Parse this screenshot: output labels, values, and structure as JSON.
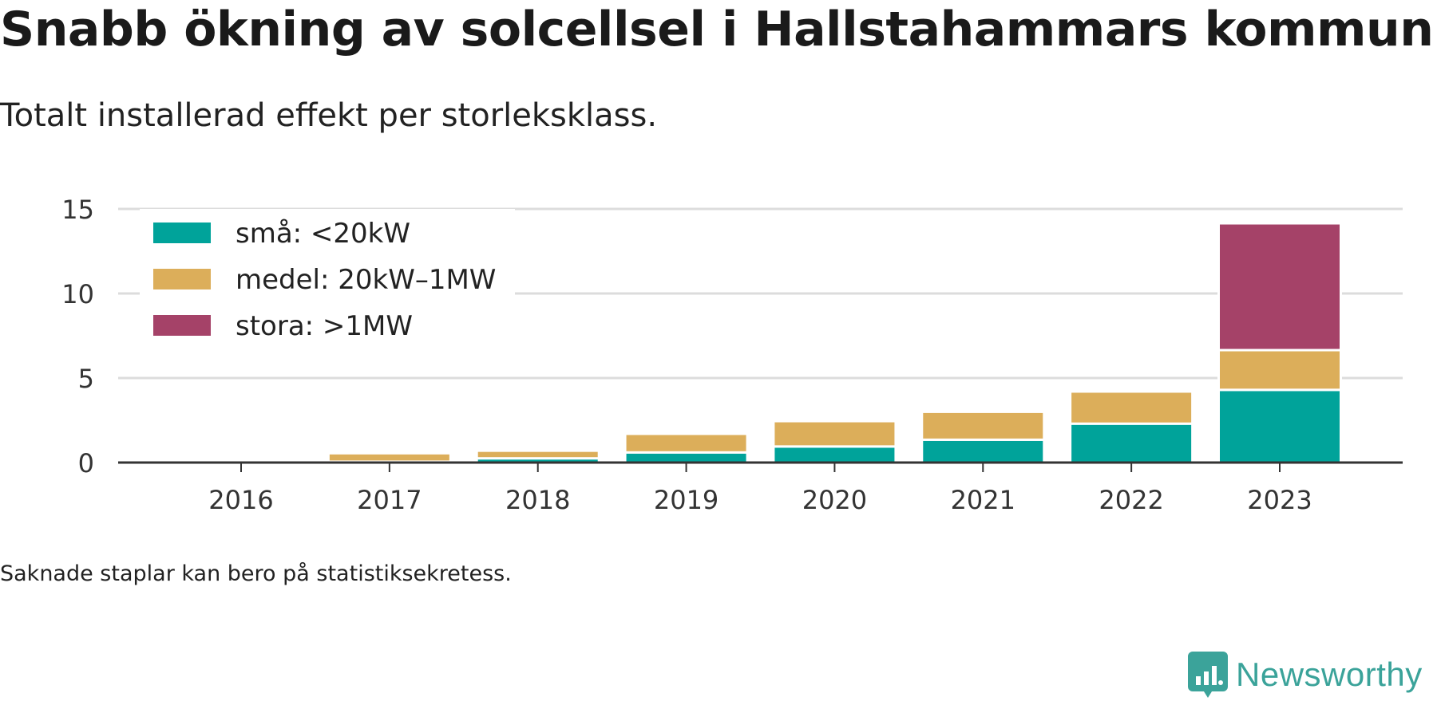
{
  "title": "Snabb ökning av solcellsel i Hallstahammars kommun",
  "subtitle": "Totalt installerad effekt per storleksklass.",
  "footnote": "Saknade staplar kan bero på statistiksekretess.",
  "brand": "Newsworthy",
  "chart_data": {
    "type": "bar",
    "stacked": true,
    "categories": [
      "2016",
      "2017",
      "2018",
      "2019",
      "2020",
      "2021",
      "2022",
      "2023"
    ],
    "series": [
      {
        "name": "små: <20kW",
        "color": "#00a39a",
        "values": [
          0,
          0.05,
          0.25,
          0.6,
          0.95,
          1.35,
          2.3,
          4.3
        ]
      },
      {
        "name": "medel: 20kW–1MW",
        "color": "#dcae5a",
        "values": [
          0,
          0.5,
          0.45,
          1.1,
          1.5,
          1.65,
          1.9,
          2.35
        ]
      },
      {
        "name": "stora: >1MW",
        "color": "#a54268",
        "values": [
          0,
          0,
          0,
          0,
          0,
          0,
          0,
          7.5
        ]
      }
    ],
    "yticks": [
      0,
      5,
      10,
      15
    ],
    "ylim": [
      0,
      15
    ],
    "grid": true,
    "legend_position": "top-left"
  }
}
